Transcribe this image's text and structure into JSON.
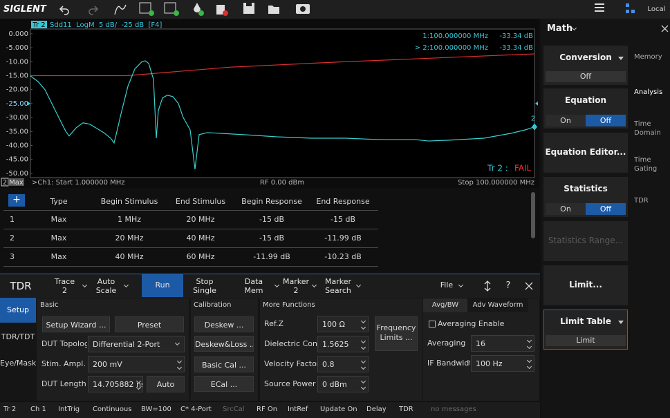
{
  "toolbar": {
    "brand": "SIGLENT",
    "status": "Local"
  },
  "chart_data": {
    "type": "line",
    "trace_label": "Tr 2",
    "title": "Sdd11  LogM  5 dB/  -25 dB  [F4]",
    "xlim": [
      1,
      100
    ],
    "ylim": [
      -51.5,
      1.7
    ],
    "grid": false,
    "reference_level": -25,
    "yticks": [
      {
        "value": 0,
        "label": "0.000"
      },
      {
        "value": -5,
        "label": "-5.000"
      },
      {
        "value": -10,
        "label": "-10.00"
      },
      {
        "value": -15,
        "label": "-15.00"
      },
      {
        "value": -20,
        "label": "-20.00"
      },
      {
        "value": -25,
        "label": "-25.00"
      },
      {
        "value": -30,
        "label": "-30.00"
      },
      {
        "value": -35,
        "label": "-35.00"
      },
      {
        "value": -40,
        "label": "-40.00"
      },
      {
        "value": -45,
        "label": "-45.00"
      },
      {
        "value": -50,
        "label": "-50.00"
      }
    ],
    "channel_box": "2",
    "mode": "Max",
    "x_start_label": ">Ch1: Start 1.000000 MHz",
    "rf_label": "RF 0.00 dBm",
    "x_stop_label": "Stop 100.000000 MHz",
    "marker_readouts": [
      {
        "label": "1:100.000000 MHz",
        "value": "-33.34 dB"
      },
      {
        "label": "> 2:100.000000 MHz",
        "value": "-33.34 dB"
      }
    ],
    "markers": [
      {
        "label": "2",
        "x": 100,
        "y": -33.34
      }
    ],
    "limit_result": {
      "label": "Tr 2 :",
      "status": "FAIL"
    },
    "series": [
      {
        "color": "#3ccfd0",
        "x": [
          1,
          2.49,
          3.85,
          5.21,
          6.57,
          7.93,
          8.6,
          9.96,
          11.32,
          12.68,
          14.04,
          15.4,
          16.75,
          17.43,
          17.84,
          18.79,
          20.15,
          21.5,
          22.86,
          23.54,
          24.22,
          25.17,
          25.72,
          26.12,
          26.94,
          27.89,
          28.97,
          30.06,
          31.01,
          32.37,
          33.32,
          34.14,
          35.77,
          42.56,
          49.35,
          56.14,
          62.93,
          69.72,
          76.51,
          79.22,
          83.3,
          90.09,
          95.52,
          98.23,
          100
        ],
        "values": [
          -15.1,
          -17.1,
          -20,
          -25,
          -30,
          -34.9,
          -36.6,
          -33.7,
          -31.9,
          -32.4,
          -33.9,
          -35.4,
          -37.4,
          -39.1,
          -36.1,
          -28.7,
          -18.8,
          -12.6,
          -10.1,
          -9.7,
          -10.6,
          -16.3,
          -37.4,
          -27.5,
          -23,
          -22,
          -22.5,
          -25,
          -30,
          -34.4,
          -48.5,
          -36.1,
          -35.4,
          -36.1,
          -36.9,
          -37.4,
          -37.4,
          -37.9,
          -37.9,
          -38.4,
          -38.1,
          -37.4,
          -35.6,
          -34.4,
          -33.34
        ]
      },
      {
        "color": "#d9302c",
        "x": [
          1,
          20,
          40,
          60,
          100
        ],
        "values": [
          -15,
          -15,
          -11.99,
          -10.23,
          -7.2
        ]
      }
    ]
  },
  "limit_table": {
    "add_button": "+",
    "columns": [
      "Type",
      "Begin Stimulus",
      "End Stimulus",
      "Begin Response",
      "End Response"
    ],
    "rows": [
      [
        "1",
        "Max",
        "1 MHz",
        "20 MHz",
        "-15 dB",
        "-15 dB"
      ],
      [
        "2",
        "Max",
        "20 MHz",
        "40 MHz",
        "-15 dB",
        "-11.99 dB"
      ],
      [
        "3",
        "Max",
        "40 MHz",
        "60 MHz",
        "-11.99 dB",
        "-10.23 dB"
      ]
    ]
  },
  "tdr_bar": {
    "title": "TDR",
    "buttons": [
      [
        "Trace",
        "2"
      ],
      [
        "Auto",
        "Scale"
      ],
      [
        "Run"
      ],
      [
        "Stop",
        "Single"
      ],
      [
        "Data",
        "Mem"
      ],
      [
        "Marker",
        "2"
      ],
      [
        "Marker",
        "Search"
      ],
      [
        "File"
      ]
    ],
    "help": "?"
  },
  "setup": {
    "tabs": [
      "Setup",
      "TDR/TDT",
      "Eye/Mask"
    ],
    "basic": {
      "title": "Basic",
      "wizard": "Setup Wizard ...",
      "preset": "Preset",
      "fields": [
        {
          "label": "DUT Topology",
          "value": "Differential 2-Port"
        },
        {
          "label": "Stim. Ampl.",
          "value": "200 mV"
        },
        {
          "label": "DUT Length",
          "value": "14.705882 ns"
        }
      ],
      "auto": "Auto"
    },
    "calibration": {
      "title": "Calibration",
      "buttons": [
        "Deskew ...",
        "Deskew&Loss ...",
        "Basic Cal ...",
        "ECal ..."
      ]
    },
    "more": {
      "title": "More Functions",
      "fields": [
        {
          "label": "Ref.Z",
          "value": "100 Ω"
        },
        {
          "label": "Dielectric Const.",
          "value": "1.5625"
        },
        {
          "label": "Velocity Factor",
          "value": "0.8"
        },
        {
          "label": "Source Power",
          "value": "0 dBm"
        }
      ],
      "frequency_limits": [
        "Frequency",
        "Limits ..."
      ]
    },
    "avg": {
      "tabs": [
        "Avg/BW",
        "Adv Waveform"
      ],
      "averaging_enable": "Averaging Enable",
      "fields": [
        {
          "label": "Averaging",
          "value": "16"
        },
        {
          "label": "IF Bandwidth",
          "value": "100 Hz"
        }
      ]
    }
  },
  "status_bar": [
    "Tr 2",
    "Ch 1",
    "IntTrig",
    "Continuous",
    "BW=100",
    "C* 4-Port",
    "SrcCal",
    "RF On",
    "IntRef",
    "Update On",
    "Delay",
    "TDR",
    "no messages"
  ],
  "right_panel": {
    "title": "Math",
    "groups": [
      {
        "title": "Conversion",
        "value": "Off"
      },
      {
        "title": "Equation",
        "on": "On",
        "off": "Off"
      },
      {
        "title": "Equation Editor..."
      },
      {
        "title": "Statistics",
        "on": "On",
        "off": "Off"
      },
      {
        "title": "Statistics Range..."
      },
      {
        "title": "Limit..."
      },
      {
        "title": "Limit Table",
        "value": "Limit"
      }
    ],
    "tabs": [
      [
        "Memory"
      ],
      [
        "Analysis"
      ],
      [
        "Time",
        "Domain"
      ],
      [
        "Time",
        "Gating"
      ],
      [
        "TDR"
      ]
    ]
  }
}
